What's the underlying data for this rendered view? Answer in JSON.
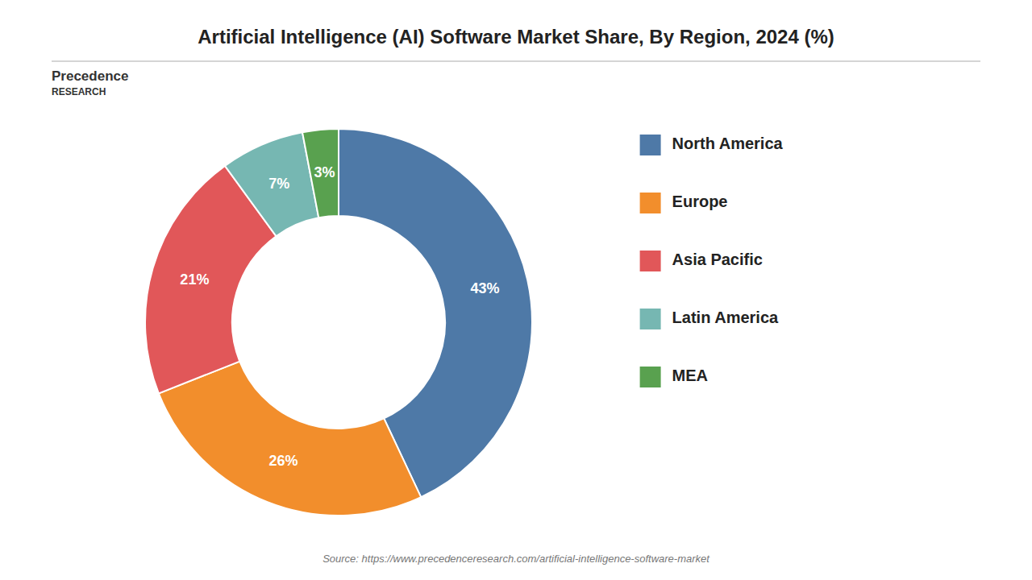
{
  "chart_data": {
    "type": "donut",
    "title": "Artificial Intelligence (AI) Software Market Share, By Region, 2024 (%)",
    "categories": [
      "North America",
      "Europe",
      "Asia Pacific",
      "Latin America",
      "MEA"
    ],
    "values": [
      43,
      26,
      21,
      7,
      3
    ],
    "value_labels": [
      "43%",
      "26%",
      "21%",
      "7%",
      "3%"
    ],
    "data_labels": true,
    "legend": "right",
    "annotations": [
      "Source: https://www.precedenceresearch.com/artificial-intelligence-software-market",
      "Precedence",
      "RESEARCH"
    ]
  }
}
